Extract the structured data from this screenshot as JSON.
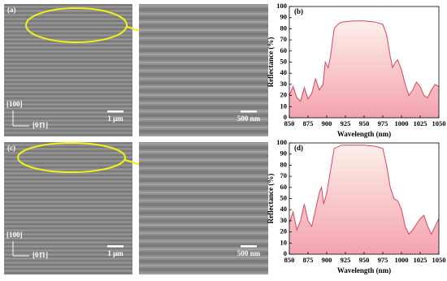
{
  "images": [
    {
      "label": "(a)",
      "direction_vertical": "[100]",
      "direction_horizontal": "[01̄1]",
      "scale_bar": "1 μm"
    },
    {
      "scale_bar": "500 nm"
    },
    {
      "label": "(c)",
      "direction_vertical": "[100]",
      "direction_horizontal": "[01̄1]",
      "scale_bar": "1 μm"
    },
    {
      "scale_bar": "500 nm"
    }
  ],
  "chart_data": [
    {
      "type": "area",
      "title": "(b)",
      "xlabel": "Wavelength (nm)",
      "ylabel": "Reflectance (%)",
      "color": "#d9425e",
      "x": [
        850,
        855,
        860,
        865,
        870,
        875,
        880,
        885,
        890,
        895,
        898,
        902,
        905,
        910,
        915,
        920,
        935,
        950,
        965,
        975,
        980,
        985,
        988,
        992,
        995,
        1000,
        1005,
        1010,
        1015,
        1020,
        1025,
        1030,
        1035,
        1040,
        1045,
        1050
      ],
      "values": [
        20,
        28,
        18,
        15,
        27,
        17,
        22,
        35,
        25,
        30,
        50,
        45,
        55,
        80,
        84,
        86,
        87,
        87,
        86,
        84,
        75,
        55,
        45,
        50,
        52,
        43,
        30,
        20,
        25,
        32,
        28,
        20,
        18,
        25,
        30,
        28
      ],
      "xlim": [
        850,
        1050
      ],
      "xticks": [
        850,
        875,
        900,
        925,
        950,
        975,
        1000,
        1025,
        1050
      ],
      "ylim": [
        0,
        100
      ],
      "yticks": [
        0,
        10,
        20,
        30,
        40,
        50,
        60,
        70,
        80,
        90,
        100
      ]
    },
    {
      "type": "area",
      "title": "(d)",
      "xlabel": "Wavelength (nm)",
      "ylabel": "Reflectance (%)",
      "color": "#d9425e",
      "x": [
        850,
        855,
        860,
        865,
        870,
        875,
        880,
        885,
        890,
        893,
        896,
        900,
        905,
        910,
        920,
        950,
        965,
        975,
        980,
        985,
        990,
        995,
        1000,
        1005,
        1010,
        1015,
        1025,
        1030,
        1035,
        1040,
        1045,
        1050
      ],
      "values": [
        28,
        38,
        22,
        30,
        45,
        30,
        25,
        40,
        55,
        60,
        45,
        55,
        75,
        95,
        98,
        98,
        97,
        95,
        80,
        60,
        50,
        48,
        40,
        25,
        18,
        22,
        32,
        35,
        25,
        18,
        25,
        32
      ],
      "xlim": [
        850,
        1050
      ],
      "xticks": [
        850,
        875,
        900,
        925,
        950,
        975,
        1000,
        1025,
        1050
      ],
      "ylim": [
        0,
        100
      ],
      "yticks": [
        0,
        10,
        20,
        30,
        40,
        50,
        60,
        70,
        80,
        90,
        100
      ]
    }
  ]
}
